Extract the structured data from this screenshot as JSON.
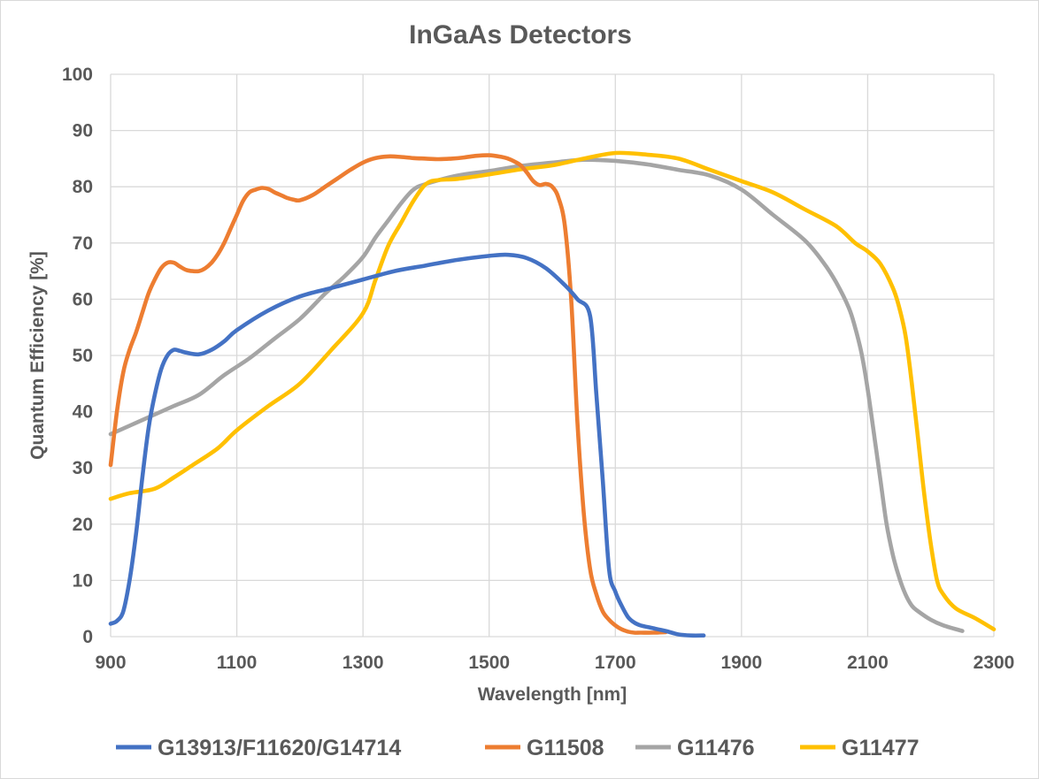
{
  "chart_data": {
    "type": "line",
    "title": "InGaAs Detectors",
    "xlabel": "Wavelength [nm]",
    "ylabel": "Quantum Efficiency [%]",
    "xlim": [
      900,
      2300
    ],
    "ylim": [
      0,
      100
    ],
    "xticks": [
      900,
      1100,
      1300,
      1500,
      1700,
      1900,
      2100,
      2300
    ],
    "yticks": [
      0,
      10,
      20,
      30,
      40,
      50,
      60,
      70,
      80,
      90,
      100
    ],
    "grid": true,
    "legend_position": "bottom",
    "series": [
      {
        "name": "G13913/F11620/G14714",
        "color": "#4472c4",
        "x": [
          900,
          910,
          920,
          930,
          940,
          950,
          960,
          970,
          980,
          990,
          1000,
          1010,
          1020,
          1040,
          1060,
          1080,
          1100,
          1150,
          1200,
          1250,
          1300,
          1350,
          1400,
          1450,
          1500,
          1530,
          1560,
          1590,
          1620,
          1640,
          1660,
          1670,
          1680,
          1690,
          1700,
          1710,
          1720,
          1730,
          1740,
          1760,
          1780,
          1800,
          1820,
          1840
        ],
        "y": [
          2.3,
          2.8,
          4.5,
          10,
          18,
          28,
          37,
          43,
          47.5,
          50,
          51,
          50.8,
          50.5,
          50.2,
          51,
          52.5,
          54.5,
          58,
          60.5,
          62,
          63.5,
          65,
          66,
          67,
          67.7,
          67.9,
          67.3,
          65.5,
          62.5,
          60,
          57,
          43,
          28,
          12,
          8,
          5.5,
          3.5,
          2.5,
          2,
          1.5,
          1,
          0.4,
          0.2,
          0.2
        ]
      },
      {
        "name": "G11508",
        "color": "#ed7d31",
        "x": [
          900,
          910,
          920,
          930,
          940,
          950,
          960,
          970,
          980,
          990,
          1000,
          1010,
          1020,
          1030,
          1040,
          1050,
          1060,
          1070,
          1080,
          1090,
          1100,
          1110,
          1120,
          1130,
          1140,
          1150,
          1160,
          1170,
          1180,
          1190,
          1200,
          1220,
          1240,
          1260,
          1280,
          1300,
          1320,
          1340,
          1360,
          1380,
          1400,
          1420,
          1440,
          1460,
          1480,
          1500,
          1520,
          1530,
          1540,
          1550,
          1560,
          1570,
          1580,
          1590,
          1600,
          1610,
          1620,
          1630,
          1640,
          1650,
          1660,
          1670,
          1680,
          1690,
          1700,
          1710,
          1720,
          1730,
          1740,
          1760,
          1780
        ],
        "y": [
          30.5,
          40,
          47,
          51,
          54,
          57.5,
          61,
          63.5,
          65.5,
          66.5,
          66.5,
          65.8,
          65.2,
          65,
          65,
          65.5,
          66.5,
          68,
          70,
          72.5,
          75,
          77.5,
          79,
          79.5,
          79.8,
          79.6,
          79,
          78.5,
          78,
          77.7,
          77.6,
          78.5,
          80,
          81.5,
          83,
          84.3,
          85.1,
          85.4,
          85.3,
          85.1,
          85,
          84.9,
          85,
          85.2,
          85.5,
          85.6,
          85.3,
          85,
          84.5,
          83.8,
          82.5,
          81,
          80.3,
          80.5,
          80,
          78,
          73,
          60,
          38,
          22,
          12,
          7.5,
          4.5,
          3,
          2,
          1.3,
          0.9,
          0.7,
          0.7,
          0.7,
          0.8
        ]
      },
      {
        "name": "G11476",
        "color": "#a5a5a5",
        "x": [
          900,
          950,
          1000,
          1040,
          1080,
          1120,
          1160,
          1200,
          1240,
          1270,
          1300,
          1320,
          1340,
          1360,
          1380,
          1400,
          1450,
          1500,
          1550,
          1600,
          1650,
          1700,
          1750,
          1800,
          1850,
          1900,
          1950,
          2000,
          2030,
          2050,
          2070,
          2080,
          2090,
          2100,
          2110,
          2120,
          2130,
          2140,
          2150,
          2160,
          2170,
          2180,
          2200,
          2220,
          2250
        ],
        "y": [
          36,
          38.5,
          41,
          43,
          46.5,
          49.5,
          53,
          56.5,
          61,
          64,
          67.5,
          71,
          74,
          77,
          79.5,
          80.5,
          82,
          82.8,
          83.7,
          84.3,
          84.8,
          84.6,
          84,
          83,
          82,
          79.5,
          75,
          70.5,
          66.5,
          63,
          58.5,
          55,
          50.5,
          44,
          36,
          28,
          20,
          14.5,
          10.5,
          7.5,
          5.5,
          4.5,
          3,
          2,
          1
        ]
      },
      {
        "name": "G11477",
        "color": "#ffc000",
        "x": [
          900,
          930,
          970,
          1000,
          1030,
          1070,
          1100,
          1150,
          1200,
          1250,
          1300,
          1320,
          1340,
          1360,
          1380,
          1400,
          1420,
          1450,
          1500,
          1550,
          1600,
          1650,
          1700,
          1750,
          1800,
          1850,
          1900,
          1950,
          2000,
          2050,
          2080,
          2100,
          2120,
          2140,
          2150,
          2160,
          2170,
          2180,
          2190,
          2200,
          2210,
          2220,
          2240,
          2270,
          2300
        ],
        "y": [
          24.5,
          25.5,
          26.3,
          28.3,
          30.5,
          33.5,
          36.7,
          41,
          45,
          51,
          57.5,
          63.5,
          69.5,
          73.5,
          77.5,
          80.5,
          81.2,
          81.4,
          82.2,
          83.1,
          83.8,
          85,
          86,
          85.7,
          85,
          83,
          81,
          79,
          76,
          73,
          70,
          68.5,
          66.3,
          62,
          58.5,
          53.5,
          45,
          35,
          25,
          16.5,
          10,
          7.5,
          5,
          3.3,
          1.3
        ]
      }
    ]
  }
}
